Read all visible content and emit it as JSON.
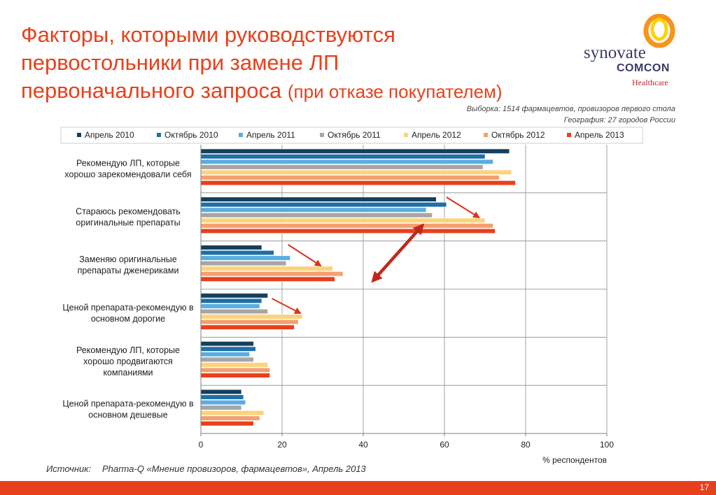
{
  "slide": {
    "title_line1": "Факторы, которыми руководствуются",
    "title_line2": "первостольники при замене ЛП",
    "title_line3_main": "первоначального запроса",
    "title_line3_sub": "(при отказе покупателем)",
    "sample_line1": "Выборка: 1514 фармацевтов, провизоров первого стола",
    "sample_line2": "География: 27 городов России",
    "source_label": "Источник:",
    "source_text": "Pharma-Q «Мнение провизоров, фармацевтов», Апрель 2013",
    "page_number": "17",
    "accent_color": "#e8401c"
  },
  "logo": {
    "word1": "synovate",
    "word2": "COMCON",
    "word3": "Healthcare",
    "ring_colors": [
      "#f7941d",
      "#ffd200"
    ]
  },
  "chart_data": {
    "type": "bar",
    "orientation": "horizontal",
    "categories": [
      "Рекомендую ЛП, которые хорошо зарекомендовали себя",
      "Стараюсь рекомендовать оригинальные препараты",
      "Заменяю оригинальные препараты дженериками",
      "Ценой препарата-рекомендую в основном дорогие",
      "Рекомендую ЛП, которые хорошо продвигаются компаниями",
      "Ценой препарата-рекомендую в основном дешевые"
    ],
    "category_lines": [
      [
        "Рекомендую ЛП, которые",
        "хорошо зарекомендовали себя"
      ],
      [
        "Стараюсь рекомендовать",
        "оригинальные препараты"
      ],
      [
        "Заменяю оригинальные",
        "препараты дженериками"
      ],
      [
        "Ценой препарата-рекомендую в",
        "основном дорогие"
      ],
      [
        "Рекомендую ЛП, которые",
        "хорошо продвигаются",
        "компаниями"
      ],
      [
        "Ценой препарата-рекомендую в",
        "основном дешевые"
      ]
    ],
    "series": [
      {
        "name": "Апрель 2010",
        "color": "#163f5e",
        "values": [
          76,
          58,
          15,
          16.5,
          13,
          10
        ]
      },
      {
        "name": "Октябрь 2010",
        "color": "#1f6fa8",
        "values": [
          70,
          60.5,
          18,
          15,
          13.5,
          10.5
        ]
      },
      {
        "name": "Апрель 2011",
        "color": "#5aaedf",
        "values": [
          72,
          55.5,
          22,
          14.5,
          12,
          11
        ]
      },
      {
        "name": "Октябрь 2011",
        "color": "#a6a6a6",
        "values": [
          69.5,
          57,
          21,
          16.5,
          13,
          10
        ]
      },
      {
        "name": "Апрель 2012",
        "color": "#fdd27a",
        "values": [
          76.5,
          70,
          32.5,
          25,
          16.5,
          15.5
        ]
      },
      {
        "name": "Октябрь 2012",
        "color": "#f4a070",
        "values": [
          73.5,
          72,
          35,
          24,
          17,
          14.5
        ]
      },
      {
        "name": "Апрель 2013",
        "color": "#e8401c",
        "values": [
          77.5,
          72.5,
          33,
          23,
          17,
          13
        ]
      }
    ],
    "xlim": [
      0,
      100
    ],
    "xticks": [
      0,
      20,
      40,
      60,
      80,
      100
    ],
    "xlabel": "% респондентов",
    "grid": true,
    "legend_position": "top",
    "annotations": {
      "trend_arrows": "small red arrows pointing right for categories 2, 3 and 4",
      "double_arrow": "large red double-headed arrow between categories 2 and 3"
    }
  }
}
